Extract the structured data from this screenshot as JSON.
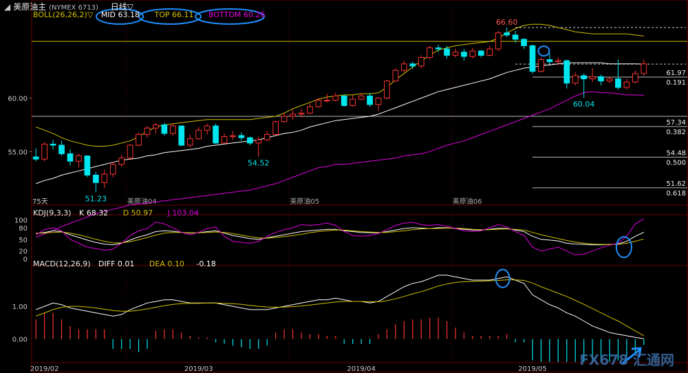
{
  "header": {
    "title": "美原油主",
    "code": "(NYMEX 6713)",
    "period": "日线"
  },
  "boll": {
    "label": "BOLL(26,26,2)",
    "mid": "MID 63.18",
    "top": "TOP 66.11",
    "bottom": "BOTTOM 60.26"
  },
  "kdj": {
    "label": "KDJ(9,3,3)",
    "k": "K 68.32",
    "d": "D 50.97",
    "j": "J 103.04"
  },
  "macd": {
    "label": "MACD(12,26,9)",
    "diff": "DIFF 0.01",
    "dea": "DEA 0.10",
    "macd": "-0.18"
  },
  "watermark": "FX678 汇通网",
  "colors": {
    "up": "#ff3333",
    "down": "#00e5ee",
    "mid": "#ffffff",
    "upper": "#d4c000",
    "lower": "#e000e0",
    "kdj_k": "#ffffff",
    "kdj_d": "#d4c000",
    "kdj_j": "#e000e0",
    "circle": "#1e90ff"
  },
  "chart_data": [
    {
      "type": "candlestick",
      "title": "美原油主 日线",
      "ylim": [
        50.0,
        68.4
      ],
      "yticks": [
        "55.00",
        "60.00"
      ],
      "x_labels": [
        "2019/02",
        "2019/03",
        "2019/04",
        "2019/05"
      ],
      "contract_labels": [
        "美原油04",
        "美原油05",
        "美原油06"
      ],
      "left_tag": "75天",
      "candles": [
        [
          54.5,
          54.3,
          55.3,
          54.1
        ],
        [
          54.3,
          55.7,
          55.9,
          54.1
        ],
        [
          55.7,
          55.6,
          56.1,
          55.2
        ],
        [
          55.6,
          54.8,
          56.0,
          54.6
        ],
        [
          54.8,
          54.1,
          55.2,
          53.7
        ],
        [
          54.1,
          54.6,
          54.8,
          53.5
        ],
        [
          54.6,
          52.8,
          54.6,
          52.6
        ],
        [
          52.8,
          52.1,
          53.1,
          51.2
        ],
        [
          52.1,
          52.9,
          53.3,
          51.6
        ],
        [
          52.9,
          53.8,
          54.0,
          52.6
        ],
        [
          53.8,
          54.4,
          54.7,
          53.6
        ],
        [
          54.4,
          55.6,
          55.7,
          54.2
        ],
        [
          55.6,
          56.6,
          56.8,
          55.5
        ],
        [
          56.6,
          57.2,
          57.4,
          56.3
        ],
        [
          57.2,
          57.5,
          57.7,
          56.7
        ],
        [
          57.5,
          56.7,
          57.7,
          56.5
        ],
        [
          56.7,
          57.4,
          57.6,
          56.5
        ],
        [
          57.4,
          55.6,
          57.4,
          55.5
        ],
        [
          55.6,
          56.2,
          56.6,
          55.4
        ],
        [
          56.2,
          57.0,
          57.3,
          56.1
        ],
        [
          57.0,
          57.4,
          57.6,
          56.6
        ],
        [
          57.4,
          55.8,
          57.6,
          55.7
        ],
        [
          55.8,
          56.4,
          56.7,
          55.7
        ],
        [
          56.4,
          56.5,
          56.9,
          56.1
        ],
        [
          56.5,
          56.3,
          56.8,
          56.0
        ],
        [
          56.3,
          55.8,
          56.4,
          55.6
        ],
        [
          55.8,
          56.1,
          56.4,
          54.52
        ],
        [
          56.1,
          56.6,
          56.9,
          56.0
        ],
        [
          56.6,
          57.8,
          57.9,
          56.5
        ],
        [
          57.8,
          58.3,
          58.6,
          57.7
        ],
        [
          58.3,
          58.5,
          58.9,
          58.0
        ],
        [
          58.5,
          58.6,
          59.0,
          58.2
        ],
        [
          58.6,
          59.2,
          59.5,
          58.5
        ],
        [
          59.2,
          59.8,
          60.0,
          59.1
        ],
        [
          59.8,
          59.8,
          60.4,
          59.6
        ],
        [
          59.8,
          60.2,
          60.5,
          59.7
        ],
        [
          60.2,
          59.3,
          60.3,
          59.2
        ],
        [
          59.3,
          59.9,
          60.3,
          59.2
        ],
        [
          59.9,
          60.2,
          60.5,
          59.8
        ],
        [
          60.2,
          59.4,
          60.5,
          59.2
        ],
        [
          59.4,
          60.0,
          60.1,
          58.8
        ],
        [
          60.0,
          61.6,
          61.7,
          59.9
        ],
        [
          61.6,
          62.6,
          62.8,
          61.5
        ],
        [
          62.6,
          63.2,
          63.5,
          62.4
        ],
        [
          63.2,
          63.0,
          63.4,
          62.7
        ],
        [
          63.0,
          63.8,
          64.0,
          62.8
        ],
        [
          63.8,
          64.7,
          64.9,
          63.6
        ],
        [
          64.7,
          64.6,
          65.0,
          64.3
        ],
        [
          64.6,
          64.0,
          64.9,
          63.7
        ],
        [
          64.0,
          64.3,
          64.6,
          63.8
        ],
        [
          64.3,
          63.9,
          64.6,
          63.5
        ],
        [
          63.9,
          64.4,
          64.7,
          63.7
        ],
        [
          64.4,
          64.0,
          64.5,
          63.8
        ],
        [
          64.0,
          64.6,
          64.9,
          63.9
        ],
        [
          64.6,
          66.1,
          66.3,
          64.4
        ],
        [
          66.1,
          65.9,
          66.6,
          65.7
        ],
        [
          65.9,
          65.5,
          66.3,
          65.2
        ],
        [
          65.5,
          64.9,
          65.6,
          64.6
        ],
        [
          64.9,
          62.5,
          65.0,
          62.3
        ],
        [
          62.5,
          63.6,
          63.8,
          62.4
        ],
        [
          63.6,
          63.4,
          64.2,
          63.2
        ],
        [
          63.4,
          63.5,
          63.8,
          63.1
        ],
        [
          63.5,
          61.4,
          63.6,
          60.9
        ],
        [
          61.4,
          62.1,
          62.4,
          61.2
        ],
        [
          62.1,
          61.8,
          62.3,
          60.04
        ],
        [
          61.8,
          62.0,
          62.8,
          61.5
        ],
        [
          62.0,
          61.6,
          62.2,
          61.2
        ],
        [
          61.6,
          61.8,
          62.0,
          61.4
        ],
        [
          61.8,
          61.0,
          63.6,
          60.8
        ],
        [
          61.0,
          61.5,
          61.8,
          60.8
        ],
        [
          61.5,
          62.3,
          62.6,
          61.4
        ],
        [
          62.3,
          63.2,
          63.6,
          62.1
        ]
      ],
      "upper": [
        57.3,
        57.0,
        56.7,
        56.3,
        56.0,
        55.8,
        55.6,
        55.5,
        55.5,
        55.6,
        55.8,
        56.0,
        56.4,
        56.9,
        57.3,
        57.5,
        57.6,
        57.7,
        57.8,
        57.9,
        58.0,
        58.0,
        58.0,
        58.0,
        58.0,
        58.0,
        58.1,
        58.2,
        58.3,
        58.6,
        59.0,
        59.3,
        59.6,
        59.9,
        60.1,
        60.2,
        60.3,
        60.3,
        60.4,
        60.4,
        60.5,
        61.0,
        61.7,
        62.3,
        62.9,
        63.5,
        64.0,
        64.5,
        64.7,
        64.9,
        65.0,
        65.1,
        65.2,
        65.3,
        65.6,
        66.1,
        66.5,
        66.8,
        66.9,
        66.9,
        66.8,
        66.6,
        66.4,
        66.2,
        66.1,
        66.0,
        66.0,
        66.0,
        66.0,
        66.0,
        65.9,
        65.8
      ],
      "mid": [
        52.0,
        52.3,
        52.5,
        52.8,
        53.0,
        53.2,
        53.4,
        53.6,
        53.8,
        54.0,
        54.2,
        54.3,
        54.4,
        54.6,
        54.7,
        54.9,
        55.0,
        55.1,
        55.2,
        55.3,
        55.5,
        55.6,
        55.7,
        55.8,
        55.9,
        56.0,
        56.1,
        56.3,
        56.5,
        56.7,
        56.8,
        57.0,
        57.3,
        57.5,
        57.7,
        57.9,
        58.0,
        58.1,
        58.2,
        58.3,
        58.5,
        58.8,
        59.1,
        59.4,
        59.7,
        60.0,
        60.3,
        60.6,
        60.8,
        61.0,
        61.2,
        61.4,
        61.6,
        61.8,
        62.1,
        62.4,
        62.6,
        62.8,
        62.9,
        63.0,
        63.1,
        63.2,
        63.3,
        63.3,
        63.3,
        63.3,
        63.3,
        63.2,
        63.2,
        63.2,
        63.2,
        63.18
      ],
      "lower": [
        47.0,
        47.3,
        47.6,
        48.0,
        48.3,
        48.6,
        48.9,
        49.2,
        49.4,
        49.6,
        49.8,
        50.0,
        50.1,
        50.2,
        50.3,
        50.4,
        50.5,
        50.6,
        50.7,
        50.8,
        50.9,
        51.0,
        51.1,
        51.2,
        51.3,
        51.4,
        51.6,
        51.8,
        52.0,
        52.3,
        52.6,
        52.9,
        53.2,
        53.5,
        53.6,
        53.8,
        53.8,
        53.9,
        54.0,
        54.1,
        54.2,
        54.3,
        54.4,
        54.6,
        54.7,
        54.8,
        55.0,
        55.3,
        55.6,
        55.8,
        56.0,
        56.3,
        56.6,
        56.9,
        57.2,
        57.5,
        57.8,
        58.1,
        58.4,
        58.7,
        59.0,
        59.4,
        59.8,
        60.2,
        60.5,
        60.6,
        60.5,
        60.5,
        60.4,
        60.3,
        60.3,
        60.26
      ],
      "hlines": [
        {
          "price": 65.3,
          "color": "#d4c000",
          "style": "solid",
          "full": true
        },
        {
          "price": 58.3,
          "color": "#bbbbbb",
          "style": "solid",
          "full": true
        }
      ],
      "fib_levels": [
        {
          "price": 61.97,
          "ratio": "0.191"
        },
        {
          "price": 57.34,
          "ratio": "0.382"
        },
        {
          "price": 54.48,
          "ratio": "0.500"
        },
        {
          "price": 51.62,
          "ratio": "0.618"
        }
      ],
      "dashed_levels": [
        66.6,
        63.18
      ],
      "annotations": [
        {
          "text": "66.60",
          "idx": 55,
          "price": 66.6,
          "pos": "above",
          "color": "#ff5050"
        },
        {
          "text": "54.52",
          "idx": 26,
          "price": 54.52,
          "pos": "below",
          "color": "#00e5ee"
        },
        {
          "text": "51.23",
          "idx": 7,
          "price": 51.2,
          "pos": "below",
          "color": "#00e5ee"
        },
        {
          "text": "60.04",
          "idx": 64,
          "price": 60.04,
          "pos": "below",
          "color": "#00e5ee"
        }
      ]
    },
    {
      "type": "line",
      "title": "KDJ(9,3,3)",
      "ylim": [
        0,
        110
      ],
      "yticks": [
        "100",
        "80",
        "50",
        "20",
        "0"
      ],
      "series": [
        {
          "name": "K",
          "values": [
            65,
            68,
            72,
            70,
            62,
            55,
            48,
            42,
            38,
            36,
            40,
            48,
            56,
            62,
            70,
            72,
            71,
            68,
            66,
            67,
            70,
            72,
            66,
            60,
            56,
            52,
            50,
            54,
            58,
            62,
            66,
            70,
            72,
            74,
            76,
            76,
            72,
            70,
            68,
            67,
            67,
            70,
            74,
            78,
            80,
            79,
            78,
            80,
            80,
            78,
            76,
            74,
            74,
            76,
            79,
            78,
            74,
            70,
            58,
            50,
            48,
            46,
            40,
            38,
            37,
            36,
            36,
            37,
            38,
            45,
            58,
            68.32
          ]
        },
        {
          "name": "D",
          "values": [
            66,
            66,
            68,
            69,
            66,
            62,
            56,
            50,
            45,
            41,
            41,
            44,
            49,
            55,
            61,
            66,
            68,
            68,
            67,
            67,
            68,
            69,
            68,
            65,
            61,
            57,
            54,
            53,
            55,
            57,
            60,
            63,
            67,
            70,
            72,
            74,
            74,
            72,
            70,
            69,
            68,
            68,
            70,
            72,
            75,
            77,
            78,
            78,
            79,
            79,
            78,
            76,
            75,
            75,
            76,
            77,
            76,
            74,
            68,
            62,
            57,
            52,
            47,
            43,
            40,
            38,
            37,
            37,
            37,
            40,
            45,
            50.97
          ]
        },
        {
          "name": "J",
          "values": [
            62,
            75,
            80,
            72,
            50,
            40,
            30,
            26,
            22,
            25,
            40,
            60,
            72,
            78,
            95,
            90,
            80,
            68,
            62,
            68,
            78,
            82,
            58,
            45,
            42,
            40,
            45,
            58,
            68,
            75,
            80,
            88,
            86,
            88,
            92,
            86,
            70,
            60,
            58,
            60,
            65,
            75,
            86,
            92,
            94,
            88,
            86,
            88,
            84,
            78,
            72,
            70,
            72,
            80,
            88,
            82,
            70,
            60,
            30,
            20,
            25,
            30,
            20,
            10,
            12,
            20,
            28,
            35,
            40,
            58,
            90,
            103.04
          ]
        }
      ]
    },
    {
      "type": "bar",
      "title": "MACD(12,26,9)",
      "ylim": [
        -0.7,
        2.2
      ],
      "yticks": [
        "1.00",
        "0.00"
      ],
      "series": [
        {
          "name": "DIFF",
          "values": [
            0.9,
            1.0,
            1.1,
            1.05,
            0.95,
            0.9,
            0.85,
            0.8,
            0.75,
            0.7,
            0.75,
            0.9,
            1.0,
            1.1,
            1.15,
            1.2,
            1.2,
            1.15,
            1.1,
            1.1,
            1.1,
            1.1,
            1.05,
            1.0,
            0.95,
            0.9,
            0.9,
            0.9,
            0.95,
            1.0,
            1.05,
            1.1,
            1.15,
            1.2,
            1.2,
            1.25,
            1.2,
            1.15,
            1.15,
            1.1,
            1.15,
            1.3,
            1.45,
            1.6,
            1.7,
            1.75,
            1.85,
            1.95,
            1.95,
            1.9,
            1.85,
            1.8,
            1.8,
            1.8,
            1.85,
            1.9,
            1.8,
            1.7,
            1.35,
            1.2,
            1.05,
            0.95,
            0.8,
            0.7,
            0.55,
            0.4,
            0.3,
            0.2,
            0.15,
            0.1,
            0.05,
            0.01
          ]
        },
        {
          "name": "DEA",
          "values": [
            0.7,
            0.8,
            0.9,
            0.97,
            1.0,
            1.0,
            0.98,
            0.95,
            0.91,
            0.87,
            0.85,
            0.85,
            0.88,
            0.92,
            0.97,
            1.02,
            1.06,
            1.08,
            1.09,
            1.09,
            1.1,
            1.1,
            1.09,
            1.08,
            1.06,
            1.03,
            1.0,
            0.98,
            0.97,
            0.98,
            0.99,
            1.01,
            1.04,
            1.07,
            1.1,
            1.13,
            1.15,
            1.15,
            1.15,
            1.14,
            1.14,
            1.17,
            1.23,
            1.3,
            1.38,
            1.45,
            1.53,
            1.62,
            1.68,
            1.73,
            1.75,
            1.76,
            1.77,
            1.78,
            1.79,
            1.81,
            1.81,
            1.79,
            1.71,
            1.6,
            1.5,
            1.4,
            1.3,
            1.18,
            1.06,
            0.93,
            0.8,
            0.67,
            0.55,
            0.4,
            0.25,
            0.1
          ]
        },
        {
          "name": "MACD",
          "values": [
            0.6,
            0.8,
            0.8,
            0.6,
            0.4,
            0.3,
            0.3,
            0.3,
            0.3,
            -0.3,
            -0.3,
            -0.3,
            -0.4,
            -0.3,
            0.25,
            0.3,
            0.3,
            0.2,
            0.1,
            0.05,
            0.05,
            -0.1,
            -0.15,
            -0.2,
            -0.25,
            -0.3,
            -0.3,
            -0.2,
            0.2,
            0.3,
            0.3,
            0.2,
            0.15,
            0.15,
            0.1,
            0.1,
            -0.15,
            -0.15,
            -0.15,
            -0.15,
            0.15,
            0.3,
            0.45,
            0.55,
            0.6,
            0.6,
            0.65,
            0.65,
            0.55,
            0.35,
            0.2,
            0.1,
            0.1,
            0.1,
            0.1,
            0.15,
            -0.1,
            -0.1,
            -0.65,
            -0.7,
            -0.7,
            -0.7,
            -0.7,
            -0.7,
            -0.7,
            -0.7,
            -0.7,
            -0.7,
            -0.65,
            -0.6,
            -0.5,
            -0.18
          ]
        }
      ]
    }
  ]
}
